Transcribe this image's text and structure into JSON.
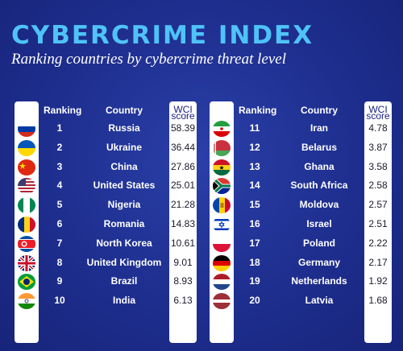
{
  "title": "CYBERCRIME INDEX",
  "subtitle": "Ranking countries by cybercrime threat level",
  "headers": {
    "ranking": "Ranking",
    "country": "Country",
    "score_line1": "WCI",
    "score_line2": "score"
  },
  "rows": [
    {
      "rank": "1",
      "country": "Russia",
      "score": "58.39",
      "flag": "russia-flag-icon"
    },
    {
      "rank": "2",
      "country": "Ukraine",
      "score": "36.44",
      "flag": "ukraine-flag-icon"
    },
    {
      "rank": "3",
      "country": "China",
      "score": "27.86",
      "flag": "china-flag-icon"
    },
    {
      "rank": "4",
      "country": "United States",
      "score": "25.01",
      "flag": "usa-flag-icon"
    },
    {
      "rank": "5",
      "country": "Nigeria",
      "score": "21.28",
      "flag": "nigeria-flag-icon"
    },
    {
      "rank": "6",
      "country": "Romania",
      "score": "14.83",
      "flag": "romania-flag-icon"
    },
    {
      "rank": "7",
      "country": "North Korea",
      "score": "10.61",
      "flag": "north-korea-flag-icon"
    },
    {
      "rank": "8",
      "country": "United Kingdom",
      "score": "9.01",
      "flag": "uk-flag-icon"
    },
    {
      "rank": "9",
      "country": "Brazil",
      "score": "8.93",
      "flag": "brazil-flag-icon"
    },
    {
      "rank": "10",
      "country": "India",
      "score": "6.13",
      "flag": "india-flag-icon"
    },
    {
      "rank": "11",
      "country": "Iran",
      "score": "4.78",
      "flag": "iran-flag-icon"
    },
    {
      "rank": "12",
      "country": "Belarus",
      "score": "3.87",
      "flag": "belarus-flag-icon"
    },
    {
      "rank": "13",
      "country": "Ghana",
      "score": "3.58",
      "flag": "ghana-flag-icon"
    },
    {
      "rank": "14",
      "country": "South Africa",
      "score": "2.58",
      "flag": "south-africa-flag-icon"
    },
    {
      "rank": "15",
      "country": "Moldova",
      "score": "2.57",
      "flag": "moldova-flag-icon"
    },
    {
      "rank": "16",
      "country": "Israel",
      "score": "2.51",
      "flag": "israel-flag-icon"
    },
    {
      "rank": "17",
      "country": "Poland",
      "score": "2.22",
      "flag": "poland-flag-icon"
    },
    {
      "rank": "18",
      "country": "Germany",
      "score": "2.17",
      "flag": "germany-flag-icon"
    },
    {
      "rank": "19",
      "country": "Netherlands",
      "score": "1.92",
      "flag": "netherlands-flag-icon"
    },
    {
      "rank": "20",
      "country": "Latvia",
      "score": "1.68",
      "flag": "latvia-flag-icon"
    }
  ]
}
